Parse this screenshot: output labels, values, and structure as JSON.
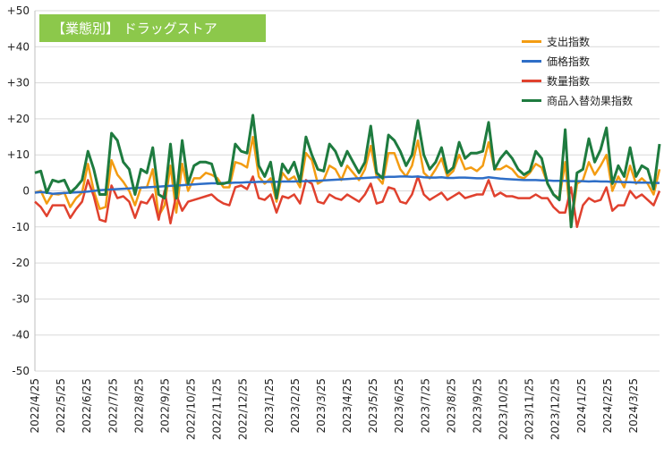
{
  "chart_data": {
    "type": "line",
    "title": "【業態別】 ドラッグストア",
    "title_color": "#8cc84b",
    "ylim": [
      -50,
      50
    ],
    "yticks": [
      50,
      40,
      30,
      20,
      10,
      0,
      -10,
      -20,
      -30,
      -40,
      -50
    ],
    "ytick_labels": [
      "+50",
      "+40",
      "+30",
      "+20",
      "+10",
      "0",
      "-10",
      "-20",
      "-30",
      "-40",
      "-50"
    ],
    "x_labels": [
      "2022/4/25",
      "2022/5/25",
      "2022/6/25",
      "2022/7/25",
      "2022/8/25",
      "2022/9/25",
      "2022/10/25",
      "2022/11/25",
      "2022/12/25",
      "2023/1/25",
      "2023/2/25",
      "2023/3/25",
      "2023/4/25",
      "2023/5/25",
      "2023/6/25",
      "2023/7/25",
      "2023/8/25",
      "2023/9/25",
      "2023/10/25",
      "2023/11/25",
      "2023/12/25",
      "2024/1/25",
      "2024/2/25",
      "2024/3/25"
    ],
    "legend_position": "top-right",
    "series": [
      {
        "name": "支出指数",
        "color": "#f39c12",
        "values": [
          -0.5,
          0,
          -3.5,
          -0.8,
          -1,
          -0.5,
          -4.5,
          -2,
          -0.5,
          7.5,
          0,
          -5,
          -4.5,
          8.5,
          4.5,
          2.5,
          0,
          -4,
          1,
          1,
          6,
          -7,
          -4,
          7,
          -6,
          7.5,
          0,
          3.5,
          3.5,
          5,
          4.5,
          3.5,
          1,
          1,
          8,
          7.5,
          6.5,
          15,
          4,
          2,
          3.5,
          -3,
          5,
          3,
          4,
          1,
          10.5,
          8.5,
          2,
          3,
          7,
          6,
          3,
          7,
          5,
          3,
          6,
          12.5,
          4,
          2,
          10.5,
          10.5,
          6,
          4,
          7,
          14,
          5,
          3.5,
          6,
          9,
          4,
          5.5,
          10,
          6,
          6.5,
          5.5,
          7,
          13.5,
          6,
          6,
          7,
          6,
          4,
          3.5,
          5,
          7.5,
          6.5,
          2,
          -1,
          -2,
          8,
          -10,
          2,
          3,
          8,
          4.5,
          7,
          10,
          0,
          4,
          1,
          7,
          2,
          3.5,
          2,
          -1,
          6
        ]
      },
      {
        "name": "価格指数",
        "color": "#2e6ec7",
        "values": [
          -0.5,
          -0.3,
          -0.5,
          -0.8,
          -0.7,
          -0.6,
          -0.5,
          -0.4,
          -0.3,
          -0.2,
          0,
          0.2,
          0.3,
          0.4,
          0.5,
          0.6,
          0.7,
          0.8,
          0.9,
          1,
          1.1,
          1.2,
          1.3,
          1.4,
          1.5,
          1.6,
          1.7,
          1.8,
          1.9,
          2,
          2.1,
          2.1,
          2.2,
          2.2,
          2.3,
          2.3,
          2.4,
          2.4,
          2.5,
          2.5,
          2.5,
          2.5,
          2.6,
          2.6,
          2.6,
          2.7,
          2.7,
          2.8,
          2.8,
          2.9,
          3,
          3.1,
          3.2,
          3.3,
          3.4,
          3.5,
          3.6,
          3.7,
          3.8,
          3.8,
          3.9,
          3.9,
          4,
          4,
          3.9,
          4,
          3.8,
          3.7,
          3.7,
          3.8,
          3.6,
          3.6,
          3.7,
          3.7,
          3.6,
          3.5,
          3.5,
          3.8,
          3.6,
          3.4,
          3.3,
          3.2,
          3.1,
          3,
          3,
          3,
          2.9,
          2.9,
          2.8,
          2.8,
          2.8,
          2.7,
          2.7,
          2.7,
          2.6,
          2.7,
          2.6,
          2.6,
          2.5,
          2.5,
          2.4,
          2.4,
          2.3,
          2.3,
          2.3,
          2.2,
          2.2
        ]
      },
      {
        "name": "数量指数",
        "color": "#e0412e",
        "values": [
          -3,
          -4.5,
          -7,
          -4,
          -4,
          -4,
          -7.5,
          -5,
          -3,
          3,
          -1.5,
          -8,
          -8.5,
          1.5,
          -2,
          -1.5,
          -3,
          -7.5,
          -3,
          -3.5,
          -1,
          -8,
          0,
          -9,
          -1,
          -5.5,
          -3,
          -2.5,
          -2,
          -1.5,
          -1,
          -2.5,
          -3.5,
          -4,
          1,
          1.5,
          0.5,
          4,
          -2,
          -2.5,
          -1,
          -6,
          -1.5,
          -2,
          -1,
          -3.5,
          3,
          2,
          -3,
          -3.5,
          -1,
          -2,
          -2.5,
          -1,
          -2,
          -3,
          -1,
          2,
          -3.5,
          -3,
          1,
          0.5,
          -3,
          -3.5,
          -1,
          4,
          -1,
          -2.5,
          -1.5,
          -0.5,
          -2.5,
          -1.5,
          -0.5,
          -2,
          -1.5,
          -1,
          -1,
          3,
          -1.5,
          -0.5,
          -1.5,
          -1.5,
          -2,
          -2,
          -2,
          -1,
          -2,
          -2,
          -4.5,
          -6,
          -6,
          1,
          -10,
          -4,
          -2,
          -3,
          -2.5,
          1,
          -5.5,
          -4,
          -4,
          0,
          -2,
          -1,
          -2.5,
          -4,
          0
        ]
      },
      {
        "name": "商品入替効果指数",
        "color": "#1e7b3f",
        "values": [
          5,
          5.5,
          -0.5,
          3,
          2.5,
          3,
          -0.5,
          1,
          3,
          11,
          6,
          -1,
          -1,
          16,
          14,
          8,
          6,
          -1,
          6,
          5,
          12,
          -1,
          -2,
          13,
          -2,
          14,
          2,
          7,
          8,
          8,
          7.5,
          2,
          2,
          2.5,
          13,
          11,
          10.5,
          21,
          7,
          4,
          8,
          -2,
          7.5,
          5,
          8,
          2.5,
          15,
          10,
          6,
          5.5,
          13,
          11,
          7,
          11,
          8,
          5,
          8,
          18,
          5,
          3.5,
          15.5,
          14,
          11,
          7,
          10,
          19.5,
          10,
          6,
          8,
          12,
          5,
          6.5,
          13.5,
          9,
          10.5,
          10.5,
          11,
          19,
          6,
          9,
          11,
          9,
          6,
          4.5,
          5.5,
          11,
          9,
          2,
          -1,
          -2.5,
          17,
          -10,
          5,
          6,
          14.5,
          8,
          11.5,
          17.5,
          2,
          7,
          4,
          12,
          4,
          7,
          6,
          0.5,
          13
        ]
      }
    ]
  }
}
